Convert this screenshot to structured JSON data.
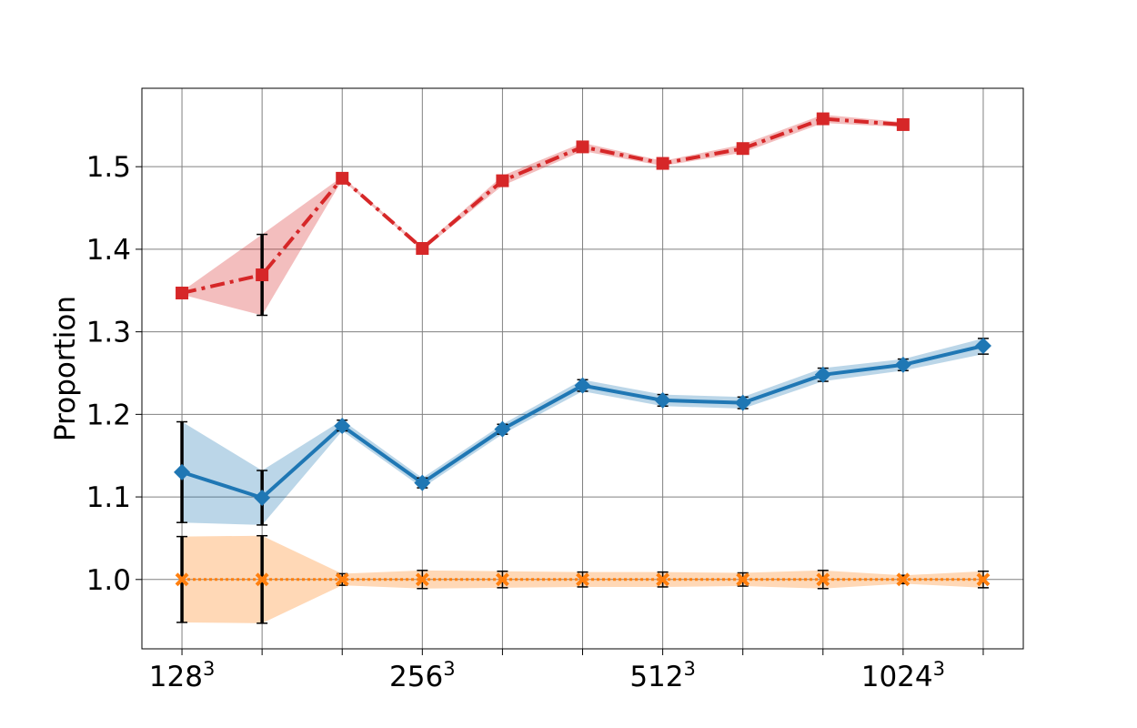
{
  "chart_data": {
    "type": "line",
    "title": "",
    "xlabel": "",
    "ylabel": "Proportion",
    "x": [
      0,
      1,
      2,
      3,
      4,
      5,
      6,
      7,
      8,
      9,
      10
    ],
    "x_ticks": [
      {
        "x": 0,
        "base": "128",
        "exp": "3"
      },
      {
        "x": 3,
        "base": "256",
        "exp": "3"
      },
      {
        "x": 6,
        "base": "512",
        "exp": "3"
      },
      {
        "x": 9,
        "base": "1024",
        "exp": "3"
      }
    ],
    "y_ticks": [
      "1.0",
      "1.1",
      "1.2",
      "1.3",
      "1.4",
      "1.5"
    ],
    "xlim": [
      -0.5,
      10.5
    ],
    "ylim": [
      0.916,
      1.595
    ],
    "grid": true,
    "series": [
      {
        "color": "#d62728",
        "style": "dashdot",
        "marker": "square",
        "x": [
          0,
          1,
          2,
          3,
          4,
          5,
          6,
          7,
          8,
          9
        ],
        "values": [
          1.347,
          1.369,
          1.486,
          1.401,
          1.483,
          1.524,
          1.504,
          1.522,
          1.558,
          1.551
        ],
        "lower": [
          1.345,
          1.32,
          1.484,
          1.399,
          1.477,
          1.519,
          1.501,
          1.517,
          1.553,
          1.548
        ],
        "upper": [
          1.349,
          1.418,
          1.488,
          1.403,
          1.489,
          1.529,
          1.507,
          1.527,
          1.563,
          1.554
        ],
        "errorbars": [
          1
        ]
      },
      {
        "color": "#1f77b4",
        "style": "solid",
        "marker": "diamond",
        "x": [
          0,
          1,
          2,
          3,
          4,
          5,
          6,
          7,
          8,
          9,
          10
        ],
        "values": [
          1.13,
          1.099,
          1.186,
          1.117,
          1.182,
          1.235,
          1.217,
          1.214,
          1.248,
          1.26,
          1.283
        ],
        "lower": [
          1.069,
          1.066,
          1.18,
          1.111,
          1.176,
          1.228,
          1.21,
          1.207,
          1.24,
          1.253,
          1.273
        ],
        "upper": [
          1.191,
          1.132,
          1.193,
          1.123,
          1.188,
          1.242,
          1.224,
          1.221,
          1.256,
          1.267,
          1.292
        ],
        "errorbars": [
          0,
          1,
          2,
          3,
          4,
          5,
          6,
          7,
          8,
          9,
          10
        ]
      },
      {
        "color": "#ff7f0e",
        "style": "dotted",
        "marker": "x",
        "x": [
          0,
          1,
          2,
          3,
          4,
          5,
          6,
          7,
          8,
          9,
          10
        ],
        "values": [
          1.0,
          1.0,
          1.0,
          1.0,
          1.0,
          1.0,
          1.0,
          1.0,
          1.0,
          1.0,
          1.0
        ],
        "lower": [
          0.948,
          0.947,
          0.993,
          0.989,
          0.99,
          0.991,
          0.991,
          0.992,
          0.989,
          0.995,
          0.99
        ],
        "upper": [
          1.052,
          1.053,
          1.007,
          1.011,
          1.01,
          1.009,
          1.009,
          1.008,
          1.011,
          1.005,
          1.01
        ],
        "errorbars": [
          0,
          1,
          2,
          3,
          4,
          5,
          6,
          7,
          8,
          9,
          10
        ]
      }
    ]
  }
}
